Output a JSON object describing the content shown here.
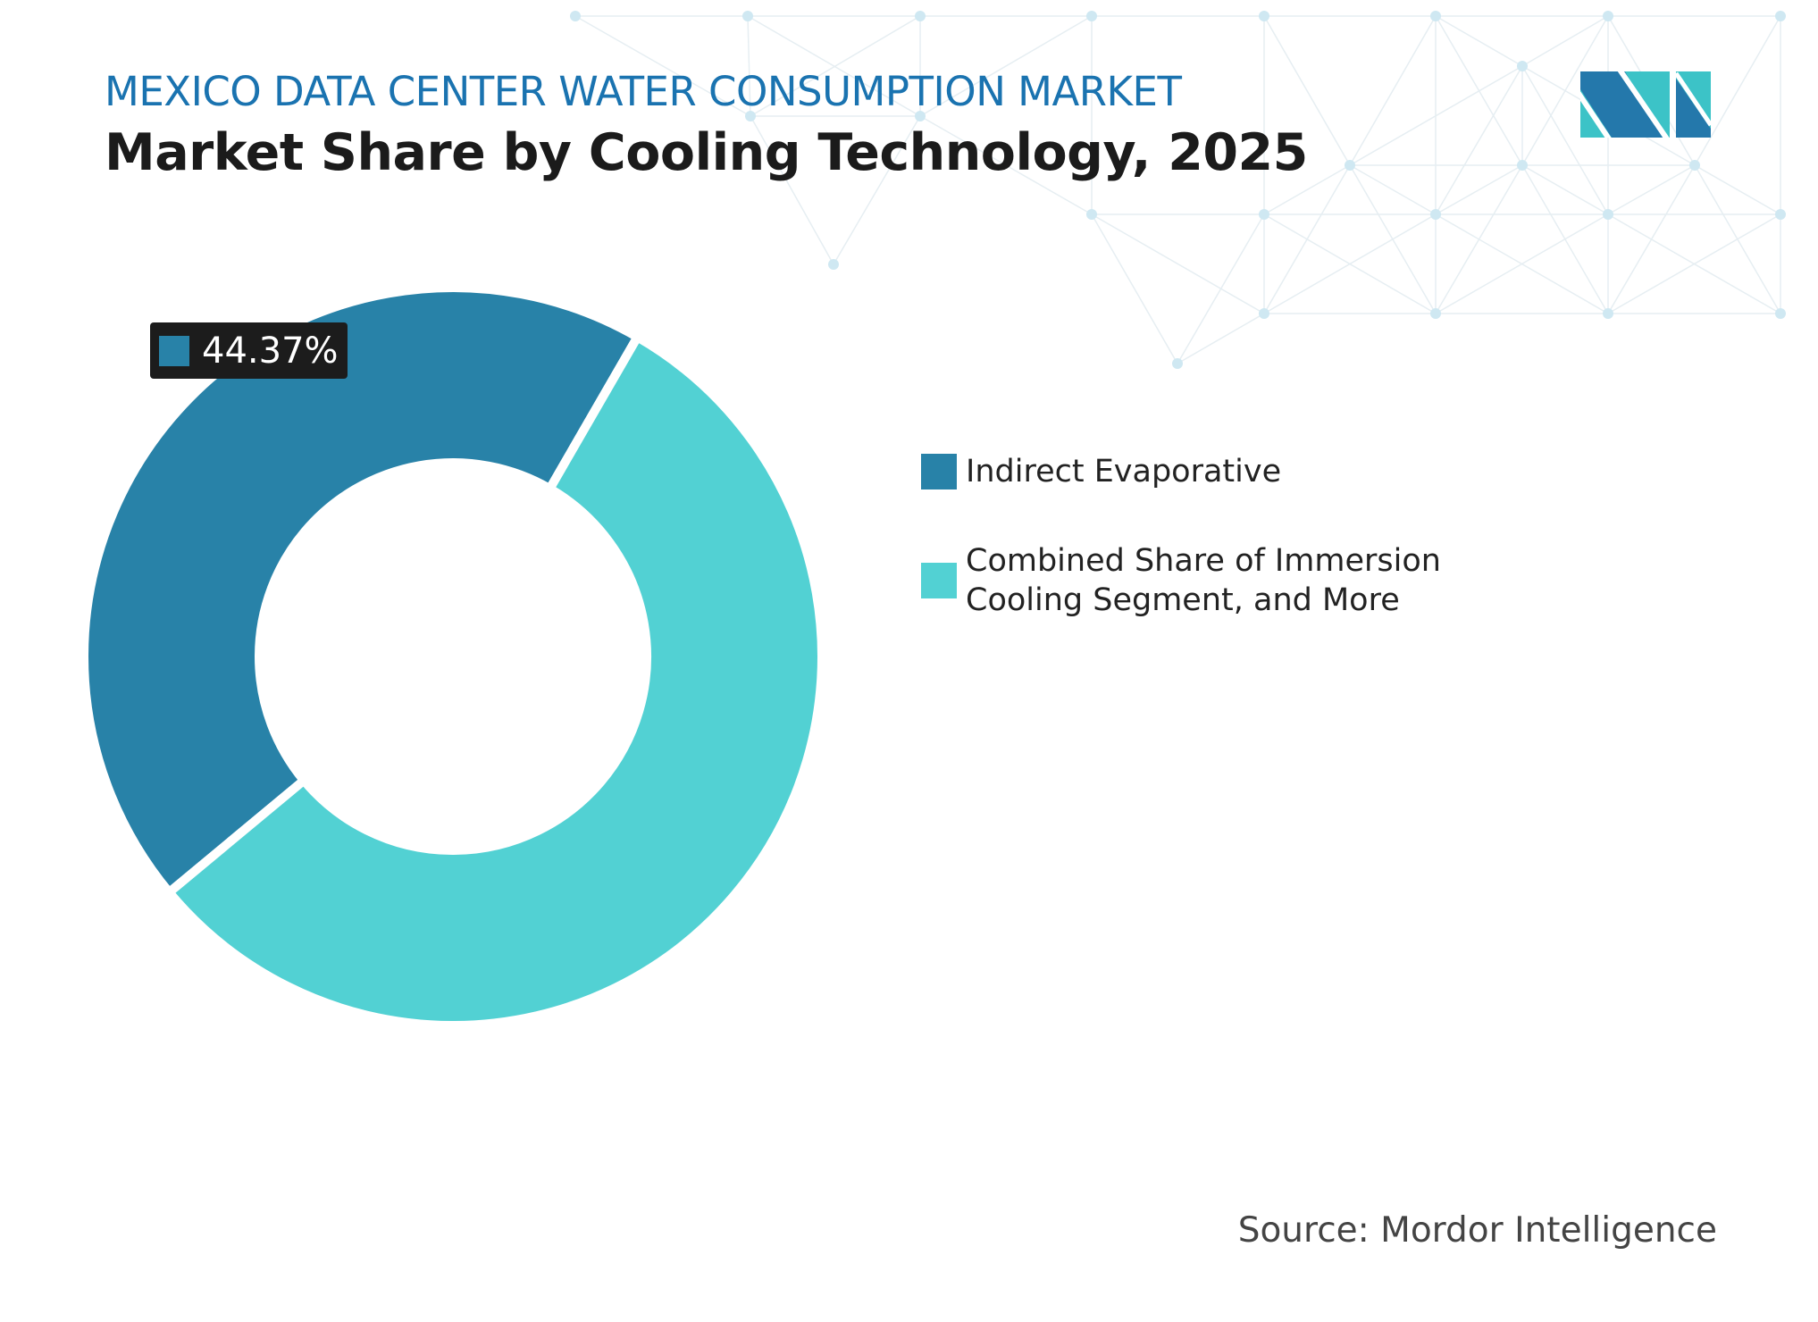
{
  "header": {
    "supertitle": "MEXICO DATA CENTER WATER CONSUMPTION MARKET",
    "title": "Market Share by Cooling Technology, 2025"
  },
  "logo": {
    "text": "MI",
    "colors": [
      "#2478ab",
      "#3cc3c7"
    ]
  },
  "source": "Source: Mordor Intelligence",
  "chart_data": {
    "type": "pie",
    "donut": true,
    "title": "Market Share by Cooling Technology, 2025",
    "series": [
      {
        "name": "Indirect Evaporative",
        "value": 44.37,
        "color": "#2882a8",
        "label": "44.37%"
      },
      {
        "name": "Combined Share of Immersion Cooling Segment, and More",
        "value": 55.63,
        "color": "#52d1d3"
      }
    ],
    "legend": "right"
  }
}
